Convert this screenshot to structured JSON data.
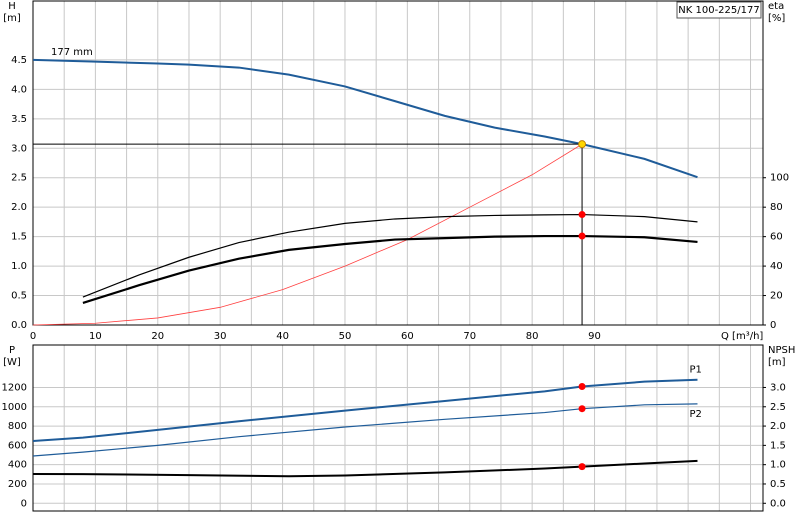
{
  "chart_data": [
    {
      "type": "line",
      "title": "NK 100-225/177",
      "ylabel": [
        "H",
        "[m]"
      ],
      "y2label": [
        "eta",
        "[%]"
      ],
      "xlabel": "Q [m³/h]",
      "xlim": [
        0,
        117
      ],
      "xticks": [
        0,
        10,
        20,
        30,
        40,
        50,
        60,
        70,
        80,
        90
      ],
      "xgrid": [
        5,
        15,
        25,
        35,
        45,
        55,
        65,
        75,
        85,
        95,
        100,
        105,
        110,
        115
      ],
      "ylim": [
        0,
        5.5
      ],
      "yticks": [
        {
          "value": 0,
          "label": "0.0"
        },
        {
          "value": 0.5,
          "label": "0.5"
        },
        {
          "value": 1,
          "label": "1.0"
        },
        {
          "value": 1.5,
          "label": "1.5"
        },
        {
          "value": 2,
          "label": "2.0"
        },
        {
          "value": 2.5,
          "label": "2.5"
        },
        {
          "value": 3,
          "label": "3.0"
        },
        {
          "value": 3.5,
          "label": "3.5"
        },
        {
          "value": 4,
          "label": "4.0"
        },
        {
          "value": 4.5,
          "label": "4.5"
        }
      ],
      "y2lim": [
        0,
        220
      ],
      "y2ticks": [
        0,
        20,
        40,
        60,
        80,
        100
      ],
      "grid": true,
      "series": [
        {
          "name": "177 mm",
          "color": "#1f5c99",
          "width": 2,
          "x": [
            0,
            10,
            20,
            25,
            33,
            41,
            50,
            58,
            66,
            74,
            82,
            88,
            98,
            106.5
          ],
          "values": [
            4.5,
            4.47,
            4.44,
            4.42,
            4.37,
            4.25,
            4.05,
            3.8,
            3.55,
            3.35,
            3.2,
            3.07,
            2.82,
            2.51
          ]
        },
        {
          "color": "#ff4040",
          "width": 0.8,
          "x": [
            0,
            10,
            20,
            30,
            40,
            50,
            60,
            70,
            80,
            88
          ],
          "values": [
            0,
            0.03,
            0.12,
            0.3,
            0.6,
            1.0,
            1.45,
            2.0,
            2.55,
            3.07
          ]
        },
        {
          "color": "#000000",
          "width": 1.2,
          "axis": "y2",
          "x": [
            8,
            17,
            25,
            33,
            41,
            50,
            58,
            66,
            74,
            82,
            88,
            98,
            106.5
          ],
          "values": [
            19,
            34,
            46,
            56,
            63,
            69,
            72,
            73.6,
            74.4,
            74.8,
            75,
            73.6,
            70
          ]
        },
        {
          "color": "#000000",
          "width": 2.2,
          "axis": "y2",
          "x": [
            8,
            17,
            25,
            33,
            41,
            50,
            58,
            66,
            74,
            82,
            88,
            98,
            106.5
          ],
          "values": [
            15,
            27,
            37,
            45,
            51,
            55,
            58,
            59,
            60,
            60.4,
            60.4,
            59.6,
            56.4
          ]
        }
      ],
      "points": [
        {
          "x": 88,
          "y": 3.07,
          "color": "#ffd700",
          "guide": true
        },
        {
          "x": 88,
          "y": 75,
          "axis": "y2",
          "color": "#ff0000"
        },
        {
          "x": 88,
          "y": 60.4,
          "axis": "y2",
          "color": "#ff0000"
        }
      ]
    },
    {
      "type": "line",
      "ylabel": [
        "P",
        "[W]"
      ],
      "y2label": [
        "NPSH",
        "[m]"
      ],
      "xlim": [
        0,
        117
      ],
      "xticks": [],
      "xgrid": [
        5,
        10,
        15,
        20,
        25,
        30,
        35,
        40,
        45,
        50,
        55,
        60,
        65,
        70,
        75,
        80,
        85,
        90,
        95,
        100,
        105,
        110,
        115
      ],
      "ylim": [
        -80,
        1640
      ],
      "yticks": [
        0,
        200,
        400,
        600,
        800,
        1000,
        1200
      ],
      "y2lim": [
        -0.2,
        4.1
      ],
      "y2ticks": [
        {
          "value": 0,
          "label": "0.0"
        },
        {
          "value": 0.5,
          "label": "0.5"
        },
        {
          "value": 1,
          "label": "1.0"
        },
        {
          "value": 1.5,
          "label": "1.5"
        },
        {
          "value": 2,
          "label": "2.0"
        },
        {
          "value": 2.5,
          "label": "2.5"
        },
        {
          "value": 3,
          "label": "3.0"
        }
      ],
      "grid": true,
      "series": [
        {
          "name": "P1",
          "color": "#1f5c99",
          "width": 2,
          "x": [
            0,
            8,
            20,
            33,
            50,
            66,
            82,
            88,
            98,
            106.5
          ],
          "values": [
            645,
            680,
            760,
            850,
            960,
            1060,
            1160,
            1210,
            1260,
            1280
          ]
        },
        {
          "name": "P2",
          "color": "#1f5c99",
          "width": 1.2,
          "x": [
            0,
            8,
            20,
            33,
            50,
            66,
            82,
            88,
            98,
            106.5
          ],
          "values": [
            490,
            530,
            600,
            690,
            790,
            870,
            940,
            980,
            1020,
            1030
          ]
        },
        {
          "color": "#000000",
          "width": 2,
          "axis": "y2",
          "x": [
            0,
            8,
            25,
            41,
            50,
            66,
            82,
            88,
            98,
            106.5
          ],
          "values": [
            0.76,
            0.755,
            0.73,
            0.7,
            0.72,
            0.8,
            0.9,
            0.95,
            1.03,
            1.1
          ]
        }
      ],
      "points": [
        {
          "x": 88,
          "y": 1210,
          "color": "#ff0000"
        },
        {
          "x": 88,
          "y": 980,
          "color": "#ff0000"
        },
        {
          "x": 88,
          "y": 0.95,
          "axis": "y2",
          "color": "#ff0000"
        }
      ]
    }
  ]
}
